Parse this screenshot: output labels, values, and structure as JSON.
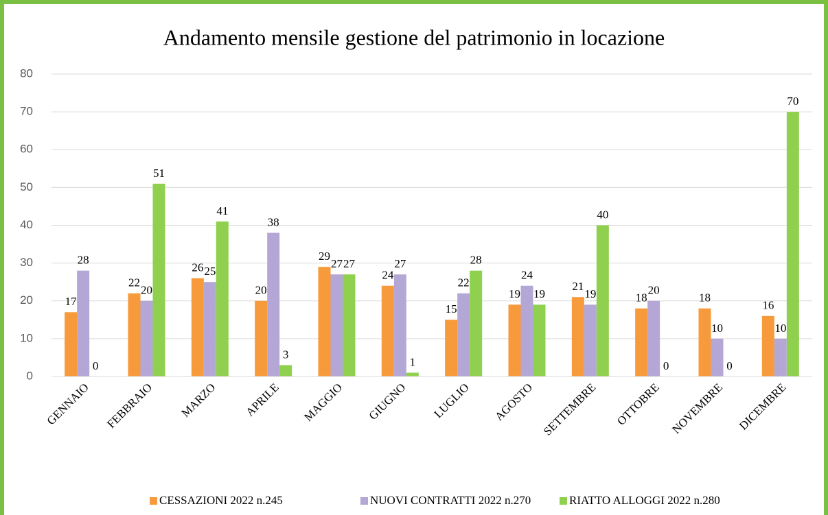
{
  "chart_data": {
    "type": "bar",
    "title": "Andamento mensile gestione del patrimonio in locazione",
    "categories": [
      "GENNAIO",
      "FEBBRAIO",
      "MARZO",
      "APRILE",
      "MAGGIO",
      "GIUGNO",
      "LUGLIO",
      "AGOSTO",
      "SETTEMBRE",
      "OTTOBRE",
      "NOVEMBRE",
      "DICEMBRE"
    ],
    "series": [
      {
        "name": "CESSAZIONI 2022 n.245",
        "color": "#f79a3b",
        "values": [
          17,
          22,
          26,
          20,
          29,
          24,
          15,
          19,
          21,
          18,
          18,
          16
        ]
      },
      {
        "name": "NUOVI CONTRATTI 2022 n.270",
        "color": "#b4a7d6",
        "values": [
          28,
          20,
          25,
          38,
          27,
          27,
          22,
          24,
          19,
          20,
          10,
          10
        ]
      },
      {
        "name": "RIATTO ALLOGGI 2022 n.280",
        "color": "#8fd14f",
        "values": [
          0,
          51,
          41,
          3,
          27,
          1,
          28,
          19,
          40,
          0,
          0,
          70
        ]
      }
    ],
    "ylim": [
      0,
      80
    ],
    "yticks": [
      0,
      10,
      20,
      30,
      40,
      50,
      60,
      70,
      80
    ],
    "grid": true,
    "legend": "bottom"
  }
}
